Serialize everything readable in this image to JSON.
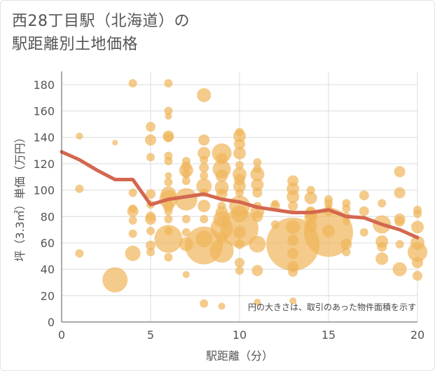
{
  "header": {
    "title_line1": "西28丁目駅（北海道）の",
    "title_line2": "駅距離別土地価格"
  },
  "chart_data": {
    "type": "scatter",
    "title": "西28丁目駅（北海道）の 駅距離別土地価格",
    "xlabel": "駅距離（分）",
    "ylabel": "坪（3.3㎡）単価（万円）",
    "xlim": [
      0,
      20
    ],
    "ylim": [
      0,
      190
    ],
    "xticks": [
      0,
      5,
      10,
      15,
      20
    ],
    "yticks": [
      0,
      20,
      40,
      60,
      80,
      100,
      120,
      140,
      160,
      180
    ],
    "grid": true,
    "note": "円の大きさは、取引のあった物件面積を示す",
    "colors": {
      "bubble": "#f0b55a",
      "trend": "#d4674f"
    },
    "points": [
      {
        "x": 1,
        "y": 141,
        "s": 5
      },
      {
        "x": 1,
        "y": 101,
        "s": 6
      },
      {
        "x": 1,
        "y": 52,
        "s": 6
      },
      {
        "x": 3,
        "y": 136,
        "s": 4
      },
      {
        "x": 3,
        "y": 32,
        "s": 18
      },
      {
        "x": 4,
        "y": 181,
        "s": 6
      },
      {
        "x": 4,
        "y": 98,
        "s": 6
      },
      {
        "x": 4,
        "y": 86,
        "s": 6
      },
      {
        "x": 4,
        "y": 84,
        "s": 8
      },
      {
        "x": 4,
        "y": 77,
        "s": 6
      },
      {
        "x": 4,
        "y": 67,
        "s": 6
      },
      {
        "x": 4,
        "y": 52,
        "s": 11
      },
      {
        "x": 5,
        "y": 148,
        "s": 7
      },
      {
        "x": 5,
        "y": 138,
        "s": 8
      },
      {
        "x": 5,
        "y": 125,
        "s": 6
      },
      {
        "x": 5,
        "y": 97,
        "s": 7
      },
      {
        "x": 5,
        "y": 89,
        "s": 6
      },
      {
        "x": 5,
        "y": 80,
        "s": 7
      },
      {
        "x": 5,
        "y": 78,
        "s": 8
      },
      {
        "x": 5,
        "y": 69,
        "s": 6
      },
      {
        "x": 5,
        "y": 58,
        "s": 7
      },
      {
        "x": 5,
        "y": 53,
        "s": 6
      },
      {
        "x": 6,
        "y": 181,
        "s": 6
      },
      {
        "x": 6,
        "y": 160,
        "s": 6
      },
      {
        "x": 6,
        "y": 156,
        "s": 5
      },
      {
        "x": 6,
        "y": 141,
        "s": 8
      },
      {
        "x": 6,
        "y": 140,
        "s": 7
      },
      {
        "x": 6,
        "y": 126,
        "s": 6
      },
      {
        "x": 6,
        "y": 122,
        "s": 6
      },
      {
        "x": 6,
        "y": 111,
        "s": 5
      },
      {
        "x": 6,
        "y": 106,
        "s": 6
      },
      {
        "x": 6,
        "y": 97,
        "s": 11
      },
      {
        "x": 6,
        "y": 93,
        "s": 13
      },
      {
        "x": 6,
        "y": 88,
        "s": 8
      },
      {
        "x": 6,
        "y": 84,
        "s": 6
      },
      {
        "x": 6,
        "y": 78,
        "s": 6
      },
      {
        "x": 6,
        "y": 69,
        "s": 6
      },
      {
        "x": 6,
        "y": 63,
        "s": 20
      },
      {
        "x": 6,
        "y": 49,
        "s": 6
      },
      {
        "x": 7,
        "y": 122,
        "s": 6
      },
      {
        "x": 7,
        "y": 118,
        "s": 7
      },
      {
        "x": 7,
        "y": 115,
        "s": 10
      },
      {
        "x": 7,
        "y": 112,
        "s": 6
      },
      {
        "x": 7,
        "y": 107,
        "s": 6
      },
      {
        "x": 7,
        "y": 93,
        "s": 16
      },
      {
        "x": 7,
        "y": 78,
        "s": 6
      },
      {
        "x": 7,
        "y": 68,
        "s": 6
      },
      {
        "x": 7,
        "y": 59,
        "s": 10
      },
      {
        "x": 7,
        "y": 36,
        "s": 5
      },
      {
        "x": 8,
        "y": 172,
        "s": 10
      },
      {
        "x": 8,
        "y": 138,
        "s": 8
      },
      {
        "x": 8,
        "y": 128,
        "s": 9
      },
      {
        "x": 8,
        "y": 123,
        "s": 6
      },
      {
        "x": 8,
        "y": 117,
        "s": 7
      },
      {
        "x": 8,
        "y": 111,
        "s": 6
      },
      {
        "x": 8,
        "y": 103,
        "s": 11
      },
      {
        "x": 8,
        "y": 98,
        "s": 6
      },
      {
        "x": 8,
        "y": 88,
        "s": 9
      },
      {
        "x": 8,
        "y": 78,
        "s": 6
      },
      {
        "x": 8,
        "y": 63,
        "s": 12
      },
      {
        "x": 8,
        "y": 58,
        "s": 27
      },
      {
        "x": 8,
        "y": 14,
        "s": 6
      },
      {
        "x": 9,
        "y": 128,
        "s": 14
      },
      {
        "x": 9,
        "y": 124,
        "s": 8
      },
      {
        "x": 9,
        "y": 116,
        "s": 13
      },
      {
        "x": 9,
        "y": 111,
        "s": 9
      },
      {
        "x": 9,
        "y": 102,
        "s": 10
      },
      {
        "x": 9,
        "y": 97,
        "s": 8
      },
      {
        "x": 9,
        "y": 88,
        "s": 6
      },
      {
        "x": 9,
        "y": 83,
        "s": 9
      },
      {
        "x": 9,
        "y": 78,
        "s": 12
      },
      {
        "x": 9,
        "y": 71,
        "s": 16
      },
      {
        "x": 9,
        "y": 64,
        "s": 8
      },
      {
        "x": 9,
        "y": 54,
        "s": 17
      },
      {
        "x": 9,
        "y": 12,
        "s": 5
      },
      {
        "x": 10,
        "y": 144,
        "s": 6
      },
      {
        "x": 10,
        "y": 141,
        "s": 9
      },
      {
        "x": 10,
        "y": 135,
        "s": 8
      },
      {
        "x": 10,
        "y": 128,
        "s": 9
      },
      {
        "x": 10,
        "y": 119,
        "s": 6
      },
      {
        "x": 10,
        "y": 112,
        "s": 10
      },
      {
        "x": 10,
        "y": 108,
        "s": 8
      },
      {
        "x": 10,
        "y": 103,
        "s": 9
      },
      {
        "x": 10,
        "y": 98,
        "s": 6
      },
      {
        "x": 10,
        "y": 88,
        "s": 15
      },
      {
        "x": 10,
        "y": 82,
        "s": 12
      },
      {
        "x": 10,
        "y": 71,
        "s": 27
      },
      {
        "x": 10,
        "y": 68,
        "s": 9
      },
      {
        "x": 10,
        "y": 59,
        "s": 7
      },
      {
        "x": 10,
        "y": 45,
        "s": 7
      },
      {
        "x": 10,
        "y": 39,
        "s": 6
      },
      {
        "x": 11,
        "y": 121,
        "s": 6
      },
      {
        "x": 11,
        "y": 116,
        "s": 6
      },
      {
        "x": 11,
        "y": 112,
        "s": 10
      },
      {
        "x": 11,
        "y": 104,
        "s": 9
      },
      {
        "x": 11,
        "y": 98,
        "s": 7
      },
      {
        "x": 11,
        "y": 88,
        "s": 6
      },
      {
        "x": 11,
        "y": 84,
        "s": 10
      },
      {
        "x": 11,
        "y": 80,
        "s": 8
      },
      {
        "x": 11,
        "y": 59,
        "s": 12
      },
      {
        "x": 11,
        "y": 39,
        "s": 8
      },
      {
        "x": 11,
        "y": 15,
        "s": 5
      },
      {
        "x": 12,
        "y": 90,
        "s": 5
      },
      {
        "x": 12,
        "y": 88,
        "s": 7
      },
      {
        "x": 12,
        "y": 74,
        "s": 6
      },
      {
        "x": 13,
        "y": 107,
        "s": 8
      },
      {
        "x": 13,
        "y": 101,
        "s": 9
      },
      {
        "x": 13,
        "y": 95,
        "s": 9
      },
      {
        "x": 13,
        "y": 88,
        "s": 7
      },
      {
        "x": 13,
        "y": 72,
        "s": 10
      },
      {
        "x": 13,
        "y": 62,
        "s": 8
      },
      {
        "x": 13,
        "y": 59,
        "s": 38
      },
      {
        "x": 13,
        "y": 52,
        "s": 8
      },
      {
        "x": 13,
        "y": 42,
        "s": 8
      },
      {
        "x": 13,
        "y": 38,
        "s": 7
      },
      {
        "x": 13,
        "y": 16,
        "s": 5
      },
      {
        "x": 14,
        "y": 100,
        "s": 6
      },
      {
        "x": 14,
        "y": 94,
        "s": 9
      },
      {
        "x": 14,
        "y": 84,
        "s": 7
      },
      {
        "x": 14,
        "y": 82,
        "s": 9
      },
      {
        "x": 14,
        "y": 79,
        "s": 9
      },
      {
        "x": 14,
        "y": 73,
        "s": 9
      },
      {
        "x": 15,
        "y": 93,
        "s": 6
      },
      {
        "x": 15,
        "y": 90,
        "s": 6
      },
      {
        "x": 15,
        "y": 87,
        "s": 5
      },
      {
        "x": 15,
        "y": 84,
        "s": 7
      },
      {
        "x": 15,
        "y": 69,
        "s": 9
      },
      {
        "x": 15,
        "y": 68,
        "s": 35
      },
      {
        "x": 16,
        "y": 90,
        "s": 6
      },
      {
        "x": 16,
        "y": 86,
        "s": 6
      },
      {
        "x": 16,
        "y": 80,
        "s": 6
      },
      {
        "x": 16,
        "y": 76,
        "s": 5
      },
      {
        "x": 16,
        "y": 59,
        "s": 8
      },
      {
        "x": 16,
        "y": 53,
        "s": 6
      },
      {
        "x": 17,
        "y": 96,
        "s": 7
      },
      {
        "x": 17,
        "y": 84,
        "s": 7
      },
      {
        "x": 17,
        "y": 68,
        "s": 6
      },
      {
        "x": 18,
        "y": 90,
        "s": 6
      },
      {
        "x": 18,
        "y": 74,
        "s": 13
      },
      {
        "x": 18,
        "y": 61,
        "s": 9
      },
      {
        "x": 18,
        "y": 57,
        "s": 7
      },
      {
        "x": 18,
        "y": 48,
        "s": 9
      },
      {
        "x": 19,
        "y": 114,
        "s": 8
      },
      {
        "x": 19,
        "y": 98,
        "s": 8
      },
      {
        "x": 19,
        "y": 78,
        "s": 8
      },
      {
        "x": 19,
        "y": 76,
        "s": 7
      },
      {
        "x": 19,
        "y": 59,
        "s": 6
      },
      {
        "x": 19,
        "y": 40,
        "s": 10
      },
      {
        "x": 20,
        "y": 85,
        "s": 6
      },
      {
        "x": 20,
        "y": 82,
        "s": 6
      },
      {
        "x": 20,
        "y": 72,
        "s": 9
      },
      {
        "x": 20,
        "y": 60,
        "s": 10
      },
      {
        "x": 20,
        "y": 53,
        "s": 14
      },
      {
        "x": 20,
        "y": 45,
        "s": 8
      },
      {
        "x": 20,
        "y": 35,
        "s": 7
      }
    ],
    "trend": {
      "x": [
        0,
        1,
        2,
        3,
        4,
        5,
        6,
        7,
        8,
        9,
        10,
        11,
        12,
        13,
        14,
        15,
        16,
        17,
        18,
        19,
        20
      ],
      "y": [
        129,
        123,
        115,
        108,
        108,
        89,
        93,
        95,
        97,
        93,
        91,
        87,
        85,
        83,
        83,
        85,
        80,
        79,
        74,
        70,
        64
      ]
    }
  }
}
